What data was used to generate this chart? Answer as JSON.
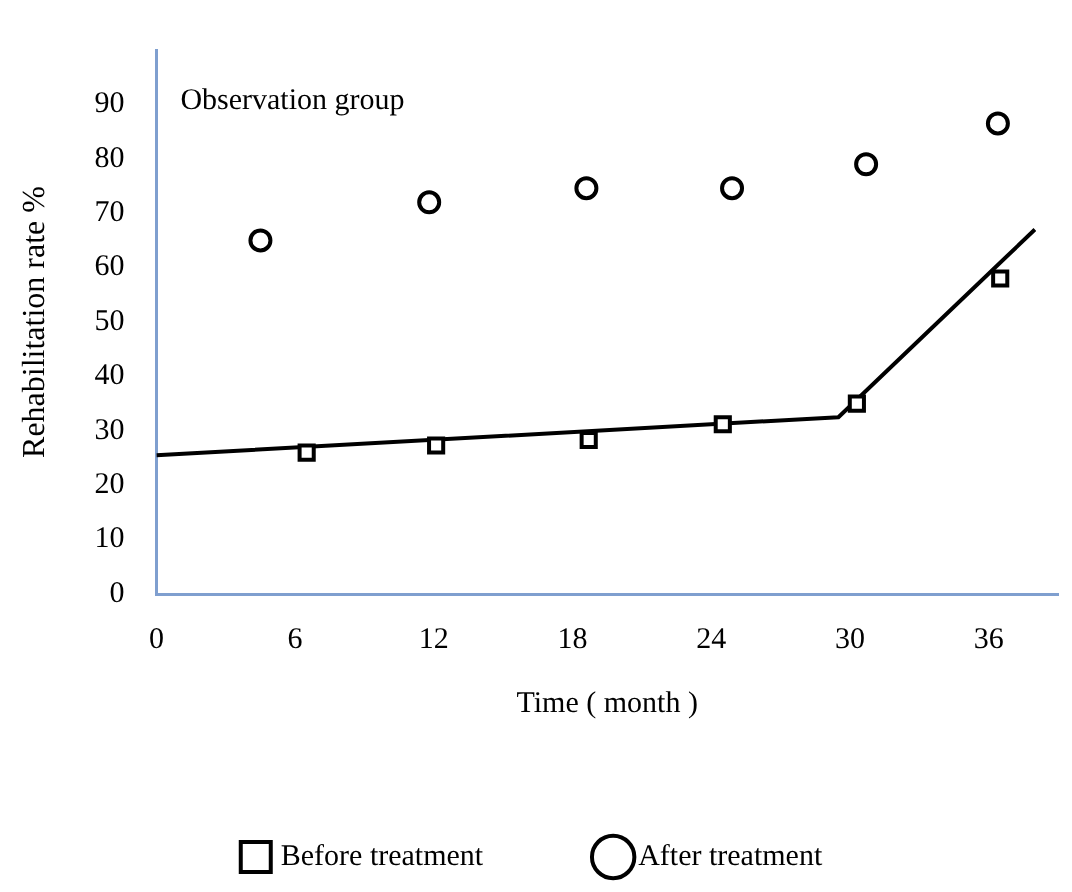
{
  "chart_data": {
    "type": "scatter",
    "xlabel": "Time ( month )",
    "ylabel": "Rehabilitation rate %",
    "annotations": [
      "Observation group"
    ],
    "xlim": [
      0,
      39
    ],
    "xticks": [
      0,
      6,
      12,
      18,
      24,
      30,
      36
    ],
    "ylim": [
      0,
      100
    ],
    "yticks": [
      0,
      10,
      20,
      30,
      40,
      50,
      60,
      70,
      80,
      90
    ],
    "grid": false,
    "legend": "bottom",
    "series": [
      {
        "name": "Before treatment",
        "color": "#000000",
        "marker": "square",
        "x": [
          6.5,
          12.1,
          18.7,
          24.5,
          30.3,
          36.5
        ],
        "values": [
          26,
          27.3,
          28.3,
          31.2,
          35,
          58
        ]
      },
      {
        "name": "After treatment",
        "color": "#000000",
        "marker": "circle",
        "x": [
          4.5,
          11.8,
          18.6,
          24.9,
          30.7,
          36.4
        ],
        "values": [
          65,
          72,
          74.6,
          74.6,
          79,
          86.5
        ]
      },
      {
        "type": "line",
        "color": "#000000",
        "marker": "none",
        "line_style": "solid",
        "x": [
          0,
          29.5,
          38
        ],
        "values": [
          25.5,
          32.5,
          67
        ]
      }
    ]
  }
}
